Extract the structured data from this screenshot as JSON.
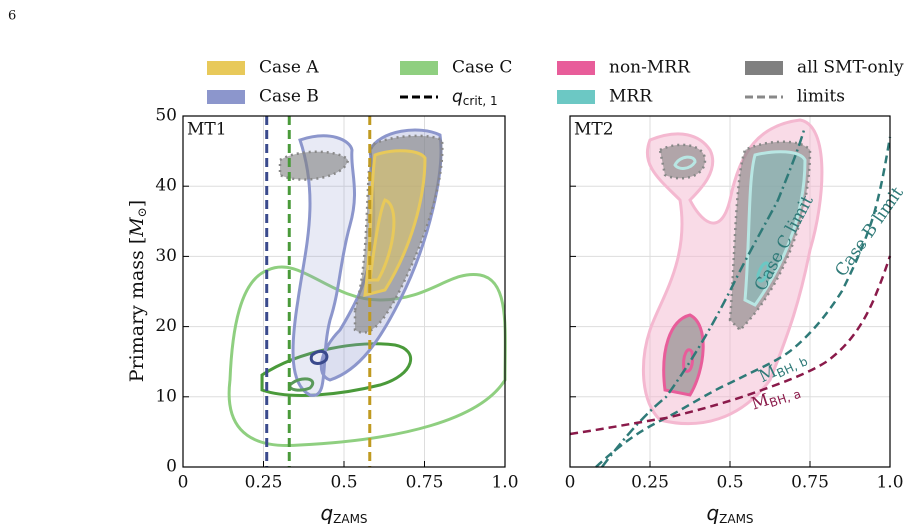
{
  "page_number": "6",
  "chart_data": {
    "type": "contour",
    "ylabel": {
      "text": "Primary mass [",
      "symbol": "M",
      "subscript": "⊙",
      "close": "]"
    },
    "xlabel": {
      "symbol": "q",
      "subscript": "ZAMS"
    },
    "xlim": [
      0,
      1
    ],
    "ylim": [
      0,
      50
    ],
    "xticks": [
      0,
      0.25,
      0.5,
      0.75,
      {
        "value": 1,
        "label": "1.0"
      }
    ],
    "yticks": [
      0,
      10,
      20,
      30,
      40,
      50
    ],
    "grid": true,
    "panels": [
      {
        "label": "MT1"
      },
      {
        "label": "MT2"
      }
    ],
    "legend1": [
      {
        "name": "Case A",
        "color": "#e8c95a"
      },
      {
        "name": "Case B",
        "color": "#8c96cc"
      },
      {
        "name": "Case C",
        "color": "#8fcf80"
      }
    ],
    "legend_qcrit": {
      "symbol": "q",
      "subscript": "crit, 1"
    },
    "legend2": [
      {
        "name": "non-MRR",
        "color": "#e85d9a"
      },
      {
        "name": "MRR",
        "color": "#6cc8c4"
      },
      {
        "name": "all SMT-only",
        "color": "#808080"
      }
    ],
    "legend_limits": "limits",
    "qcrit": [
      {
        "value": 0.26,
        "color": "#3a4a8c"
      },
      {
        "value": 0.33,
        "color": "#4a9a3a"
      },
      {
        "value": 0.58,
        "color": "#c09a20"
      }
    ],
    "annotations": {
      "case_c_limit": "Case C limit",
      "case_b_limit": "Case B limit",
      "mbh_b": {
        "symbol": "M",
        "subscript": "BH, b"
      },
      "mbh_a": {
        "symbol": "M",
        "subscript": "BH, a"
      }
    }
  }
}
